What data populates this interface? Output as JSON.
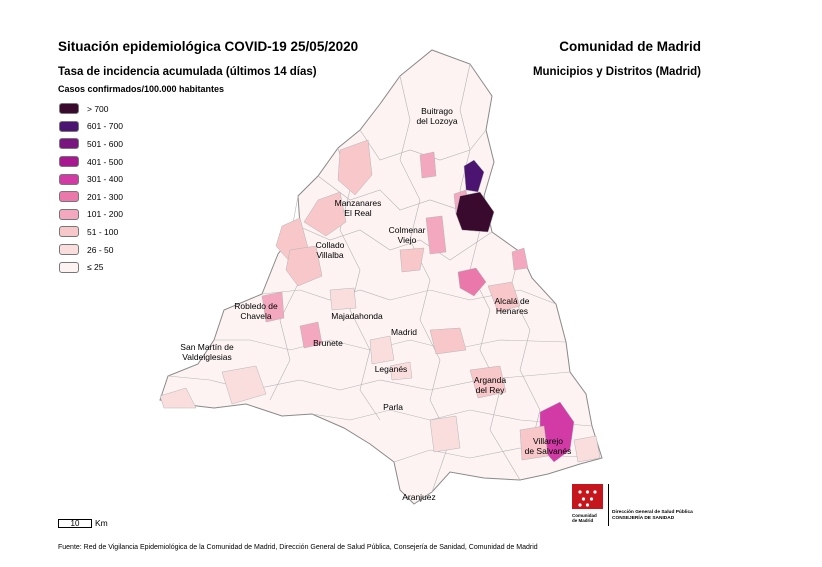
{
  "header": {
    "title": "Situación epidemiológica COVID-19  25/05/2020",
    "subtitle": "Tasa de incidencia acumulada (últimos 14 días)",
    "unit": "Casos confirmados/100.000 habitantes",
    "region": "Comunidad de Madrid",
    "scope": "Municipios y Distritos (Madrid)"
  },
  "legend": [
    {
      "label": "> 700",
      "color": "#3a0a2e"
    },
    {
      "label": "601 - 700",
      "color": "#4a1470"
    },
    {
      "label": "501 - 600",
      "color": "#7a1580"
    },
    {
      "label": "401 - 500",
      "color": "#a81890"
    },
    {
      "label": "301 - 400",
      "color": "#d23aa6"
    },
    {
      "label": "201 - 300",
      "color": "#ea78aa"
    },
    {
      "label": "101 - 200",
      "color": "#f4a8c0"
    },
    {
      "label": "51 - 100",
      "color": "#f7c7c9"
    },
    {
      "label": "26 - 50",
      "color": "#fadede"
    },
    {
      "label": "≤ 25",
      "color": "#fdf3f3"
    }
  ],
  "places": {
    "buitrago": [
      "Buitrago",
      "del Lozoya"
    ],
    "manzanares": [
      "Manzanares",
      "El Real"
    ],
    "colmenar": [
      "Colmenar",
      "Viejo"
    ],
    "collado": [
      "Collado",
      "Villalba"
    ],
    "alcala": [
      "Alcalá de",
      "Henares"
    ],
    "robledo": [
      "Robledo de",
      "Chavela"
    ],
    "majadahonda": "Majadahonda",
    "madrid": "Madrid",
    "sanmartin": [
      "San Martín de",
      "Valdeiglesias"
    ],
    "brunete": "Brunete",
    "leganes": "Leganés",
    "arganda": [
      "Arganda",
      "del Rey"
    ],
    "parla": "Parla",
    "villarejo": [
      "Villarejo",
      "de Salvanés"
    ],
    "aranjuez": "Aranjuez"
  },
  "scale": {
    "value": "10",
    "unit": "Km"
  },
  "logo": [
    "Comunidad",
    "de Madrid"
  ],
  "agency": [
    "Dirección General de Salud Pública",
    "CONSEJERÍA DE SANIDAD"
  ],
  "source": "Fuente: Red de Vigilancia Epidemiológica de la Comunidad de Madrid, Dirección General de Salud Pública, Consejería de Sanidad, Comunidad de Madrid"
}
